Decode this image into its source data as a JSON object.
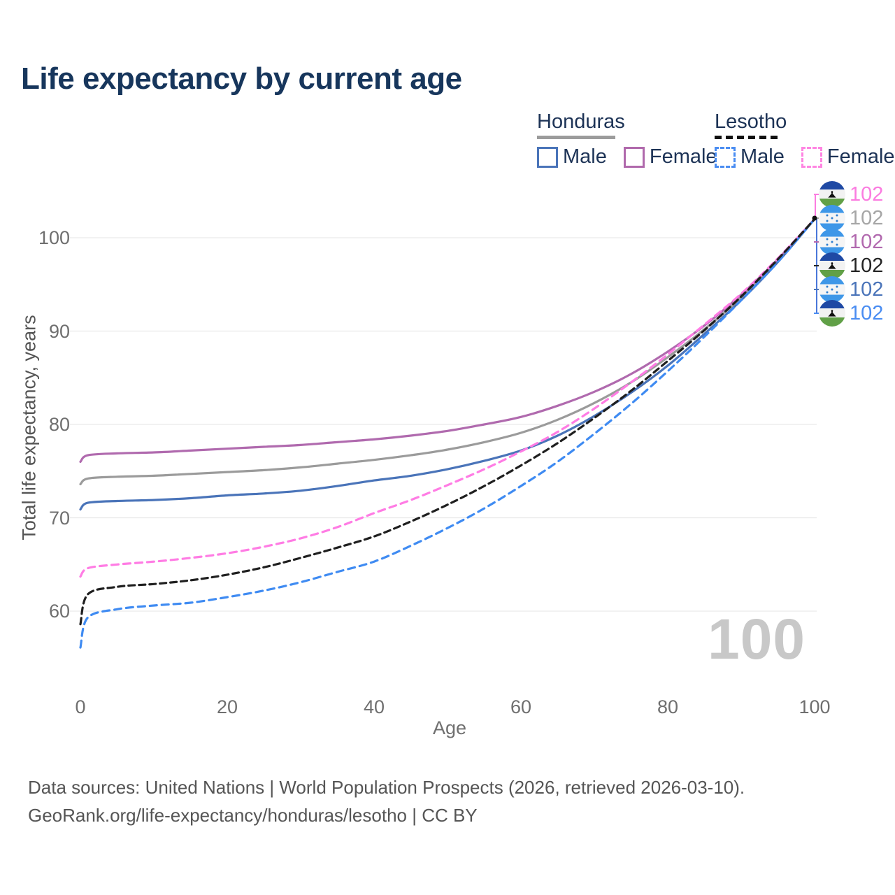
{
  "title": "Life expectancy by current age",
  "legend": {
    "groups": [
      {
        "country": "Honduras",
        "line_style": "solid",
        "underline_color": "#9c9c9c",
        "items": [
          {
            "label": "Male",
            "color": "#4a74b9",
            "dashed": false
          },
          {
            "label": "Female",
            "color": "#b069ac",
            "dashed": false
          }
        ]
      },
      {
        "country": "Lesotho",
        "line_style": "dashed",
        "underline_color": "#111111",
        "items": [
          {
            "label": "Male",
            "color": "#4a8df2",
            "dashed": true
          },
          {
            "label": "Female",
            "color": "#ff85e2",
            "dashed": true
          }
        ]
      }
    ]
  },
  "chart_data": {
    "type": "line",
    "title": "Life expectancy by current age",
    "xlabel": "Age",
    "ylabel": "Total life expectancy, years",
    "x_ticks": [
      0,
      20,
      40,
      60,
      80,
      100
    ],
    "y_ticks": [
      100,
      90,
      80,
      70,
      60
    ],
    "xlim": [
      0,
      100
    ],
    "ylim": [
      55,
      103
    ],
    "grid": "horizontal",
    "gridline_color": "#e9e9e9",
    "x": [
      0,
      1,
      5,
      10,
      15,
      20,
      25,
      30,
      35,
      40,
      45,
      50,
      55,
      60,
      65,
      70,
      75,
      80,
      85,
      90,
      95,
      100
    ],
    "series": [
      {
        "name": "Honduras Both sexes",
        "country": "Honduras",
        "group": "Both sexes",
        "color": "#9b9b9b",
        "dash": null,
        "values": [
          73.6,
          74.2,
          74.4,
          74.5,
          74.7,
          74.9,
          75.1,
          75.4,
          75.8,
          76.2,
          76.7,
          77.3,
          78.1,
          79.1,
          80.5,
          82.3,
          84.5,
          87.2,
          90.2,
          93.6,
          97.6,
          102
        ]
      },
      {
        "name": "Honduras Female",
        "country": "Honduras",
        "group": "Female",
        "color": "#b06aae",
        "dash": null,
        "values": [
          76.0,
          76.7,
          76.9,
          77.0,
          77.2,
          77.4,
          77.6,
          77.8,
          78.1,
          78.4,
          78.8,
          79.3,
          80.0,
          80.8,
          82.0,
          83.5,
          85.4,
          87.8,
          90.6,
          93.9,
          97.7,
          102
        ]
      },
      {
        "name": "Honduras Male",
        "country": "Honduras",
        "group": "Male",
        "color": "#4a74b9",
        "dash": null,
        "values": [
          70.9,
          71.6,
          71.8,
          71.9,
          72.1,
          72.4,
          72.6,
          72.9,
          73.4,
          74.0,
          74.5,
          75.2,
          76.1,
          77.2,
          78.8,
          80.9,
          83.4,
          86.3,
          89.7,
          93.3,
          97.4,
          102
        ]
      },
      {
        "name": "Lesotho Female",
        "country": "Lesotho",
        "group": "Female",
        "color": "#ff7ce4",
        "dash": [
          10,
          7
        ],
        "values": [
          63.7,
          64.6,
          65.0,
          65.3,
          65.7,
          66.2,
          66.9,
          67.8,
          69.0,
          70.5,
          71.9,
          73.5,
          75.2,
          77.1,
          79.2,
          81.7,
          84.5,
          87.5,
          90.7,
          94.0,
          97.8,
          102
        ]
      },
      {
        "name": "Lesotho Male",
        "country": "Lesotho",
        "group": "Male",
        "color": "#3f8bf2",
        "dash": [
          10,
          7
        ],
        "values": [
          56.1,
          59.3,
          60.2,
          60.6,
          60.9,
          61.5,
          62.2,
          63.1,
          64.2,
          65.3,
          67.0,
          68.9,
          71.0,
          73.4,
          76.0,
          79.0,
          82.2,
          85.7,
          89.4,
          93.3,
          97.4,
          102
        ]
      },
      {
        "name": "Lesotho Both sexes",
        "country": "Lesotho",
        "group": "Both sexes",
        "color": "#1f1f1f",
        "dash": [
          9,
          6
        ],
        "values": [
          58.6,
          61.8,
          62.6,
          62.9,
          63.3,
          63.9,
          64.7,
          65.7,
          66.8,
          68.0,
          69.6,
          71.4,
          73.4,
          75.6,
          78.0,
          80.7,
          83.6,
          86.8,
          90.1,
          93.7,
          97.7,
          102
        ]
      }
    ],
    "end_labels": [
      {
        "series": "Lesotho Female",
        "flag": "lesotho",
        "value": "102",
        "color": "#fb7ce0"
      },
      {
        "series": "Honduras Both sexes",
        "flag": "honduras",
        "value": "102",
        "color": "#a6a6a6"
      },
      {
        "series": "Honduras Female",
        "flag": "honduras",
        "value": "102",
        "color": "#b168ae"
      },
      {
        "series": "Lesotho Both sexes",
        "flag": "lesotho",
        "value": "102",
        "color": "#232323"
      },
      {
        "series": "Honduras Male",
        "flag": "honduras",
        "value": "102",
        "color": "#4a74b9"
      },
      {
        "series": "Lesotho Male",
        "flag": "lesotho",
        "value": "102",
        "color": "#4a8df2"
      }
    ],
    "bracket": {
      "upper_color": "#fb7ce0",
      "lower_color": "#4a77d9",
      "dot_color": "#111111"
    }
  },
  "watermark": "100",
  "footer": {
    "line1": "Data sources: United Nations | World Population Prospects (2026, retrieved 2026-03-10).",
    "line2": "GeoRank.org/life-expectancy/honduras/lesotho | CC BY"
  }
}
